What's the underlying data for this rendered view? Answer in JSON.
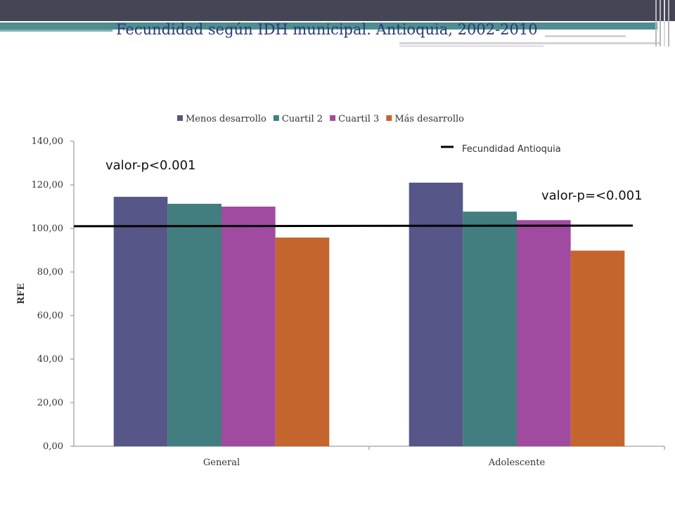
{
  "slide": {
    "title": "Fecundidad según IDH municipal. Antioquia, 2002-2010",
    "accent_colors": {
      "topbar": "#454556",
      "teal": "#4f8d8f",
      "title": "#2b3a78"
    }
  },
  "annotations": {
    "pvalue_general": "valor-p<0.001",
    "pvalue_adolescente": "valor-p=<0.001",
    "reference_line_label": "Fecundidad Antioquia"
  },
  "chart_data": {
    "type": "bar",
    "categories": [
      "General",
      "Adolescente"
    ],
    "series": [
      {
        "name": "Menos desarrollo",
        "color": "#565689",
        "values": [
          114.5,
          121.0
        ]
      },
      {
        "name": "Cuartil 2",
        "color": "#427e80",
        "values": [
          111.3,
          107.7
        ]
      },
      {
        "name": "Cuartil 3",
        "color": "#a04ba0",
        "values": [
          110.0,
          103.8
        ]
      },
      {
        "name": "Más desarrollo",
        "color": "#c4652d",
        "values": [
          95.8,
          89.8
        ]
      }
    ],
    "reference_line": {
      "name": "Fecundidad Antioquia",
      "values": [
        101.0,
        101.3
      ],
      "color": "#000000"
    },
    "ylabel": "RFE",
    "xlabel": "",
    "ylim": [
      0,
      140
    ],
    "yticks": [
      0,
      20,
      40,
      60,
      80,
      100,
      120,
      140
    ],
    "ytick_labels": [
      "0,00",
      "20,00",
      "40,00",
      "60,00",
      "80,00",
      "100,00",
      "120,00",
      "140,00"
    ],
    "grid": false,
    "legend_position": "top"
  }
}
